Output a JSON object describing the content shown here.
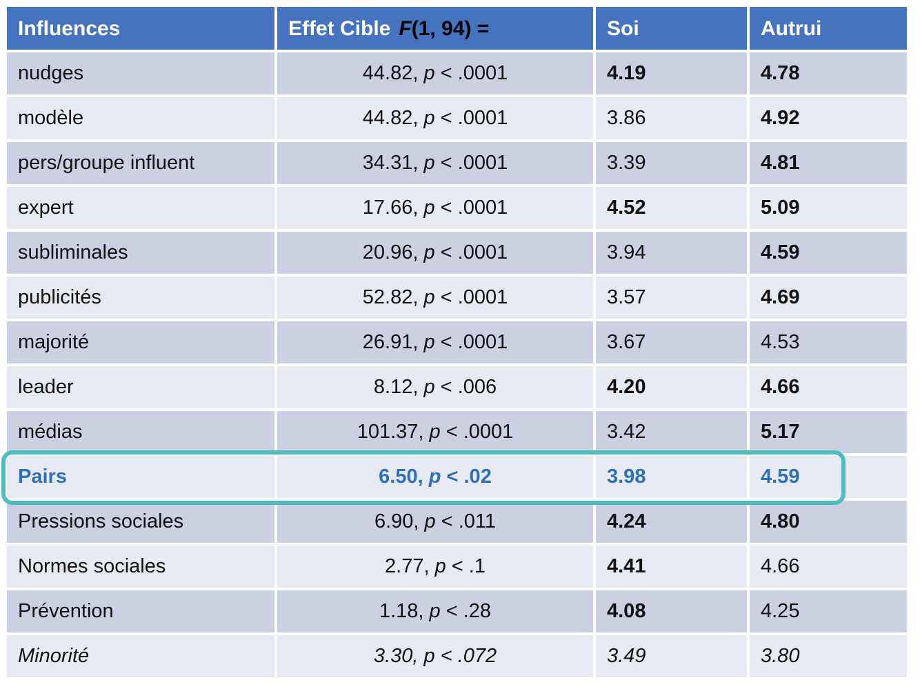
{
  "colors": {
    "header_bg": "#4673C0",
    "header_text": "#ffffff",
    "row_dark": "#CBD0E2",
    "row_light": "#E8EAF3",
    "highlight_text": "#2E70B8",
    "highlight_box": "#4EBCBE"
  },
  "header": {
    "col_influences": "Influences",
    "col_effect_white": "Effet Cible",
    "col_effect_black_f": "F",
    "col_effect_black_rest": "(1, 94) =",
    "col_soi": "Soi",
    "col_autrui": "Autrui"
  },
  "effect_format": {
    "separator": ", ",
    "p_symbol": "p",
    "operator": " < "
  },
  "highlight": {
    "row_label": "Pairs"
  },
  "rows": [
    {
      "influence": "nudges",
      "f": "44.82",
      "p": ".0001",
      "soi": "4.19",
      "autrui": "4.78",
      "soi_bold": true,
      "autrui_bold": true,
      "style": "normal"
    },
    {
      "influence": "modèle",
      "f": "44.82",
      "p": ".0001",
      "soi": "3.86",
      "autrui": "4.92",
      "soi_bold": false,
      "autrui_bold": true,
      "style": "normal"
    },
    {
      "influence": "pers/groupe influent",
      "f": "34.31",
      "p": ".0001",
      "soi": "3.39",
      "autrui": "4.81",
      "soi_bold": false,
      "autrui_bold": true,
      "style": "normal"
    },
    {
      "influence": "expert",
      "f": "17.66",
      "p": ".0001",
      "soi": "4.52",
      "autrui": "5.09",
      "soi_bold": true,
      "autrui_bold": true,
      "style": "normal"
    },
    {
      "influence": "subliminales",
      "f": "20.96",
      "p": ".0001",
      "soi": "3.94",
      "autrui": "4.59",
      "soi_bold": false,
      "autrui_bold": true,
      "style": "normal"
    },
    {
      "influence": "publicités",
      "f": "52.82",
      "p": ".0001",
      "soi": "3.57",
      "autrui": "4.69",
      "soi_bold": false,
      "autrui_bold": true,
      "style": "normal"
    },
    {
      "influence": "majorité",
      "f": "26.91",
      "p": ".0001",
      "soi": "3.67",
      "autrui": "4.53",
      "soi_bold": false,
      "autrui_bold": false,
      "style": "normal"
    },
    {
      "influence": "leader",
      "f": "8.12",
      "p": ".006",
      "soi": "4.20",
      "autrui": "4.66",
      "soi_bold": true,
      "autrui_bold": true,
      "style": "normal"
    },
    {
      "influence": "médias",
      "f": "101.37",
      "p": ".0001",
      "soi": "3.42",
      "autrui": "5.17",
      "soi_bold": false,
      "autrui_bold": true,
      "style": "normal"
    },
    {
      "influence": "Pairs",
      "f": "6.50",
      "p": ".02",
      "soi": "3.98",
      "autrui": "4.59",
      "soi_bold": true,
      "autrui_bold": true,
      "style": "highlight"
    },
    {
      "influence": "Pressions sociales",
      "f": "6.90",
      "p": ".011",
      "soi": "4.24",
      "autrui": "4.80",
      "soi_bold": true,
      "autrui_bold": true,
      "style": "normal"
    },
    {
      "influence": "Normes sociales",
      "f": "2.77",
      "p": ".1",
      "soi": "4.41",
      "autrui": "4.66",
      "soi_bold": true,
      "autrui_bold": false,
      "style": "normal"
    },
    {
      "influence": "Prévention",
      "f": "1.18",
      "p": ".28",
      "soi": "4.08",
      "autrui": "4.25",
      "soi_bold": true,
      "autrui_bold": false,
      "style": "normal"
    },
    {
      "influence": "Minorité",
      "f": "3.30",
      "p": ".072",
      "soi": "3.49",
      "autrui": "3.80",
      "soi_bold": false,
      "autrui_bold": false,
      "style": "italic"
    }
  ]
}
